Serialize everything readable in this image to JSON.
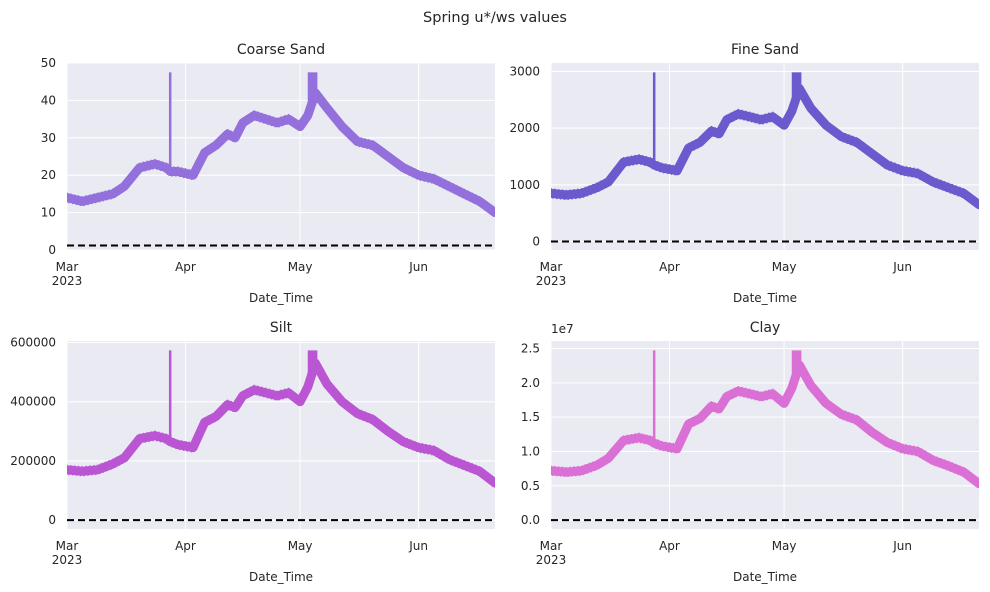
{
  "figure": {
    "title": "Spring u*/ws values",
    "background": "#ffffff",
    "axes_facecolor": "#eaeaf2",
    "grid_color": "#ffffff"
  },
  "chart_data": [
    {
      "type": "line",
      "title": "Coarse Sand",
      "xlabel": "Date_Time",
      "ylabel": "",
      "color": "#9370db",
      "x_range": [
        "2023-03-01",
        "2023-06-21"
      ],
      "ylim": [
        0,
        50
      ],
      "yticks": [
        0,
        10,
        20,
        30,
        40,
        50
      ],
      "ytick_labels": [
        "0",
        "10",
        "20",
        "30",
        "40",
        "50"
      ],
      "y_offset_label": "",
      "xticks": [
        "2023-03-01",
        "2023-04-01",
        "2023-05-01",
        "2023-06-01"
      ],
      "xtick_labels": [
        "Mar",
        "Apr",
        "May",
        "Jun"
      ],
      "xtick_sublabel": "2023",
      "threshold": {
        "value": 1.2,
        "style": "dashed",
        "color": "#000000"
      },
      "series": [
        {
          "x": [
            "2023-03-01",
            "2023-03-05",
            "2023-03-09",
            "2023-03-13",
            "2023-03-16",
            "2023-03-20",
            "2023-03-24",
            "2023-03-27",
            "2023-03-28",
            "2023-03-30",
            "2023-04-03",
            "2023-04-06",
            "2023-04-09",
            "2023-04-12",
            "2023-04-14",
            "2023-04-16",
            "2023-04-19",
            "2023-04-22",
            "2023-04-25",
            "2023-04-28",
            "2023-05-01",
            "2023-05-03",
            "2023-05-05",
            "2023-05-08",
            "2023-05-12",
            "2023-05-16",
            "2023-05-20",
            "2023-05-24",
            "2023-05-28",
            "2023-06-01",
            "2023-06-05",
            "2023-06-09",
            "2023-06-13",
            "2023-06-17",
            "2023-06-21"
          ],
          "y": [
            14,
            13,
            14,
            15,
            17,
            22,
            23,
            22,
            21,
            21,
            20,
            26,
            28,
            31,
            30,
            34,
            36,
            35,
            34,
            35,
            33,
            36,
            42,
            38,
            33,
            29,
            28,
            25,
            22,
            20,
            19,
            17,
            15,
            13,
            10
          ]
        }
      ]
    },
    {
      "type": "line",
      "title": "Fine Sand",
      "xlabel": "Date_Time",
      "ylabel": "",
      "color": "#6a5acd",
      "x_range": [
        "2023-03-01",
        "2023-06-21"
      ],
      "ylim": [
        -150,
        3150
      ],
      "yticks": [
        0,
        1000,
        2000,
        3000
      ],
      "ytick_labels": [
        "0",
        "1000",
        "2000",
        "3000"
      ],
      "y_offset_label": "",
      "xticks": [
        "2023-03-01",
        "2023-04-01",
        "2023-05-01",
        "2023-06-01"
      ],
      "xtick_labels": [
        "Mar",
        "Apr",
        "May",
        "Jun"
      ],
      "xtick_sublabel": "2023",
      "threshold": {
        "value": 0,
        "style": "dashed",
        "color": "#000000"
      },
      "series": [
        {
          "x": [
            "2023-03-01",
            "2023-03-05",
            "2023-03-09",
            "2023-03-13",
            "2023-03-16",
            "2023-03-20",
            "2023-03-24",
            "2023-03-27",
            "2023-03-28",
            "2023-03-30",
            "2023-04-03",
            "2023-04-06",
            "2023-04-09",
            "2023-04-12",
            "2023-04-14",
            "2023-04-16",
            "2023-04-19",
            "2023-04-22",
            "2023-04-25",
            "2023-04-28",
            "2023-05-01",
            "2023-05-03",
            "2023-05-05",
            "2023-05-08",
            "2023-05-12",
            "2023-05-16",
            "2023-05-20",
            "2023-05-24",
            "2023-05-28",
            "2023-06-01",
            "2023-06-05",
            "2023-06-09",
            "2023-06-13",
            "2023-06-17",
            "2023-06-21"
          ],
          "y": [
            850,
            820,
            850,
            950,
            1050,
            1400,
            1450,
            1400,
            1350,
            1300,
            1250,
            1650,
            1750,
            1950,
            1900,
            2150,
            2250,
            2200,
            2150,
            2200,
            2050,
            2300,
            2700,
            2350,
            2050,
            1850,
            1750,
            1550,
            1350,
            1250,
            1200,
            1050,
            950,
            850,
            650
          ]
        }
      ]
    },
    {
      "type": "line",
      "title": "Silt",
      "xlabel": "Date_Time",
      "ylabel": "",
      "color": "#ba55d3",
      "x_range": [
        "2023-03-01",
        "2023-06-21"
      ],
      "ylim": [
        -30000,
        605000
      ],
      "yticks": [
        0,
        200000,
        400000,
        600000
      ],
      "ytick_labels": [
        "0",
        "200000",
        "400000",
        "600000"
      ],
      "y_offset_label": "",
      "xticks": [
        "2023-03-01",
        "2023-04-01",
        "2023-05-01",
        "2023-06-01"
      ],
      "xtick_labels": [
        "Mar",
        "Apr",
        "May",
        "Jun"
      ],
      "xtick_sublabel": "2023",
      "threshold": {
        "value": 0,
        "style": "dashed",
        "color": "#000000"
      },
      "series": [
        {
          "x": [
            "2023-03-01",
            "2023-03-05",
            "2023-03-09",
            "2023-03-13",
            "2023-03-16",
            "2023-03-20",
            "2023-03-24",
            "2023-03-27",
            "2023-03-28",
            "2023-03-30",
            "2023-04-03",
            "2023-04-06",
            "2023-04-09",
            "2023-04-12",
            "2023-04-14",
            "2023-04-16",
            "2023-04-19",
            "2023-04-22",
            "2023-04-25",
            "2023-04-28",
            "2023-05-01",
            "2023-05-03",
            "2023-05-05",
            "2023-05-08",
            "2023-05-12",
            "2023-05-16",
            "2023-05-20",
            "2023-05-24",
            "2023-05-28",
            "2023-06-01",
            "2023-06-05",
            "2023-06-09",
            "2023-06-13",
            "2023-06-17",
            "2023-06-21"
          ],
          "y": [
            170000,
            165000,
            170000,
            190000,
            210000,
            275000,
            285000,
            275000,
            265000,
            255000,
            245000,
            330000,
            350000,
            390000,
            380000,
            420000,
            440000,
            430000,
            420000,
            430000,
            400000,
            450000,
            530000,
            460000,
            400000,
            360000,
            340000,
            300000,
            265000,
            245000,
            235000,
            205000,
            185000,
            165000,
            125000
          ]
        }
      ]
    },
    {
      "type": "line",
      "title": "Clay",
      "xlabel": "Date_Time",
      "ylabel": "",
      "color": "#da70d6",
      "x_range": [
        "2023-03-01",
        "2023-06-21"
      ],
      "ylim": [
        -1.3,
        26.1
      ],
      "yticks": [
        0,
        5,
        10,
        15,
        20,
        25
      ],
      "ytick_labels": [
        "0.0",
        "0.5",
        "1.0",
        "1.5",
        "2.0",
        "2.5"
      ],
      "y_offset_label": "1e7",
      "xticks": [
        "2023-03-01",
        "2023-04-01",
        "2023-05-01",
        "2023-06-01"
      ],
      "xtick_labels": [
        "Mar",
        "Apr",
        "May",
        "Jun"
      ],
      "xtick_sublabel": "2023",
      "threshold": {
        "value": 0,
        "style": "dashed",
        "color": "#000000"
      },
      "series": [
        {
          "x": [
            "2023-03-01",
            "2023-03-05",
            "2023-03-09",
            "2023-03-13",
            "2023-03-16",
            "2023-03-20",
            "2023-03-24",
            "2023-03-27",
            "2023-03-28",
            "2023-03-30",
            "2023-04-03",
            "2023-04-06",
            "2023-04-09",
            "2023-04-12",
            "2023-04-14",
            "2023-04-16",
            "2023-04-19",
            "2023-04-22",
            "2023-04-25",
            "2023-04-28",
            "2023-05-01",
            "2023-05-03",
            "2023-05-05",
            "2023-05-08",
            "2023-05-12",
            "2023-05-16",
            "2023-05-20",
            "2023-05-24",
            "2023-05-28",
            "2023-06-01",
            "2023-06-05",
            "2023-06-09",
            "2023-06-13",
            "2023-06-17",
            "2023-06-21"
          ],
          "y": [
            7.2,
            7.0,
            7.2,
            8.0,
            9.0,
            11.6,
            12.0,
            11.6,
            11.2,
            10.8,
            10.4,
            14.0,
            14.8,
            16.6,
            16.2,
            18.0,
            18.8,
            18.4,
            18.0,
            18.4,
            17.0,
            19.2,
            22.6,
            19.6,
            17.0,
            15.4,
            14.6,
            12.8,
            11.3,
            10.4,
            10.0,
            8.7,
            7.9,
            7.0,
            5.3
          ]
        }
      ]
    }
  ]
}
